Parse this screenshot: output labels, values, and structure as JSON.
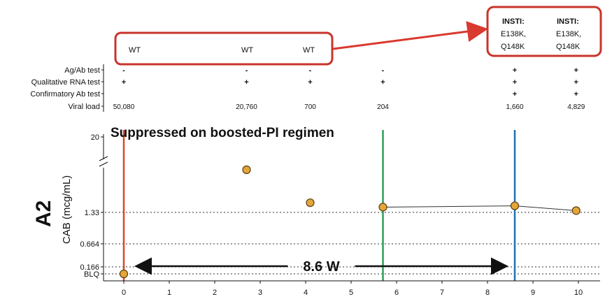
{
  "panel_label": "A2",
  "mutation_boxes": {
    "wt_labels": [
      "WT",
      "WT",
      "WT"
    ],
    "insti_columns": [
      {
        "title": "INSTI:",
        "lines": [
          "E138K,",
          "Q148K"
        ]
      },
      {
        "title": "INSTI:",
        "lines": [
          "E138K,",
          "Q148K"
        ]
      }
    ]
  },
  "tests": {
    "row_labels": [
      "Ag/Ab test",
      "Qualitative RNA test",
      "Confirmatory Ab test",
      "Viral load"
    ],
    "columns": [
      {
        "x": 0,
        "agab": "-",
        "rna": "+",
        "confirm": "",
        "vl": "50,080"
      },
      {
        "x": 2.7,
        "agab": "-",
        "rna": "+",
        "confirm": "",
        "vl": "20,760"
      },
      {
        "x": 4.1,
        "agab": "-",
        "rna": "+",
        "confirm": "",
        "vl": "700"
      },
      {
        "x": 5.7,
        "agab": "-",
        "rna": "+",
        "confirm": "",
        "vl": "204"
      },
      {
        "x": 8.6,
        "agab": "+",
        "rna": "+",
        "confirm": "+",
        "vl": "1,660"
      },
      {
        "x": 9.95,
        "agab": "+",
        "rna": "+",
        "confirm": "+",
        "vl": "4,829"
      }
    ]
  },
  "annotations": {
    "suppressed": "Suppressed on boosted-PI regimen",
    "interval": "8.6 W",
    "interval_range": [
      0,
      8.6
    ]
  },
  "chart_data": {
    "type": "scatter",
    "ylabel": "CAB (mcg/mL)",
    "xlabel": "",
    "xlim": [
      0,
      10
    ],
    "x_ticks": [
      "0",
      "1",
      "2",
      "3",
      "4",
      "5",
      "6",
      "7",
      "8",
      "9",
      "10"
    ],
    "y_ticks": [
      {
        "label": "20",
        "value": 20
      },
      {
        "label": "1.33",
        "value": 1.33
      },
      {
        "label": "0.664",
        "value": 0.664
      },
      {
        "label": "0.166",
        "value": 0.166
      },
      {
        "label": "BLQ",
        "value": 0
      }
    ],
    "axis_break": true,
    "points": [
      {
        "x": 0,
        "y": 0
      },
      {
        "x": 2.7,
        "y": 2.3
      },
      {
        "x": 4.1,
        "y": 1.55
      },
      {
        "x": 5.7,
        "y": 1.45
      },
      {
        "x": 8.6,
        "y": 1.48
      },
      {
        "x": 9.95,
        "y": 1.37
      }
    ],
    "connected_from_index": 3,
    "vertical_lines": [
      {
        "x": 0,
        "color": "#e0432b"
      },
      {
        "x": 5.7,
        "color": "#2e9e5b"
      },
      {
        "x": 8.6,
        "color": "#1f6fb5"
      }
    ],
    "marker_color": "#e4a63a",
    "grid": "dotted at 1.33, 0.664, 0.166, BLQ"
  },
  "colors": {
    "box": "#c8342b",
    "arrow": "#d9392f"
  }
}
